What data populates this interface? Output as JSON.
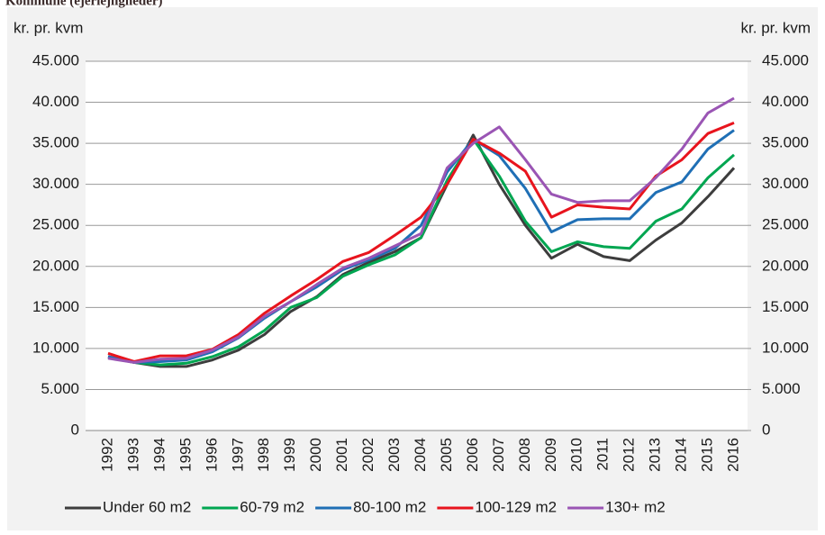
{
  "chart_data": {
    "type": "line",
    "title": "Kommune (ejerlejligheder)",
    "ylabel": "kr. pr. kvm",
    "y2label": "kr. pr. kvm",
    "x": [
      1992,
      1993,
      1994,
      1995,
      1996,
      1997,
      1998,
      1999,
      2000,
      2001,
      2002,
      2003,
      2004,
      2005,
      2006,
      2007,
      2008,
      2009,
      2010,
      2011,
      2012,
      2013,
      2014,
      2015,
      2016
    ],
    "ylim": [
      0,
      45000
    ],
    "yticks": [
      0,
      {
        "value": 5000,
        "label": "5.000"
      },
      {
        "value": 10000,
        "label": "10.000"
      },
      {
        "value": 15000,
        "label": "15.000"
      },
      {
        "value": 20000,
        "label": "20.000"
      },
      {
        "value": 25000,
        "label": "25.000"
      },
      {
        "value": 30000,
        "label": "30.000"
      },
      {
        "value": 35000,
        "label": "35.000"
      },
      {
        "value": 40000,
        "label": "40.000"
      },
      {
        "value": 45000,
        "label": "45.000"
      }
    ],
    "y2lim": [
      0,
      45000
    ],
    "y2ticks": [
      0,
      {
        "value": 5000,
        "label": "5.000"
      },
      {
        "value": 10000,
        "label": "10.000"
      },
      {
        "value": 15000,
        "label": "15.000"
      },
      {
        "value": 20000,
        "label": "20.000"
      },
      {
        "value": 25000,
        "label": "25.000"
      },
      {
        "value": 30000,
        "label": "30.000"
      },
      {
        "value": 35000,
        "label": "35.000"
      },
      {
        "value": 40000,
        "label": "40.000"
      },
      {
        "value": 45000,
        "label": "45.000"
      }
    ],
    "grid": true,
    "legend": "bottom",
    "series": [
      {
        "name": "Under 60 m2",
        "color": "#3d3d3d",
        "values": [
          9000,
          8300,
          7800,
          7800,
          8600,
          9800,
          11700,
          14500,
          16300,
          19000,
          20500,
          21800,
          23500,
          30000,
          36000,
          30000,
          25000,
          21000,
          22700,
          21200,
          20700,
          23200,
          25300,
          28500,
          32000
        ]
      },
      {
        "name": "60-79 m2",
        "color": "#00a651",
        "values": [
          8900,
          8300,
          8000,
          8200,
          9000,
          10200,
          12200,
          15000,
          16200,
          18800,
          20200,
          21400,
          23500,
          30500,
          35500,
          31000,
          25500,
          21800,
          23000,
          22400,
          22200,
          25500,
          27000,
          30800,
          33600
        ]
      },
      {
        "name": "80-100 m2",
        "color": "#1f6fb5",
        "values": [
          9000,
          8300,
          8400,
          8600,
          9600,
          11300,
          13700,
          15700,
          17500,
          19600,
          20800,
          22200,
          25000,
          31500,
          35500,
          33500,
          29500,
          24200,
          25700,
          25800,
          25800,
          29000,
          30300,
          34300,
          36600
        ]
      },
      {
        "name": "100-129 m2",
        "color": "#e8141d",
        "values": [
          9400,
          8400,
          9100,
          9100,
          9900,
          11700,
          14300,
          16400,
          18400,
          20600,
          21700,
          23800,
          26000,
          30000,
          35500,
          33800,
          31600,
          26000,
          27500,
          27200,
          27000,
          31000,
          33000,
          36200,
          37500
        ]
      },
      {
        "name": "130+ m2",
        "color": "#9a55b4",
        "values": [
          8800,
          8300,
          8700,
          8800,
          9800,
          11400,
          13900,
          15700,
          17800,
          19800,
          21000,
          22500,
          24000,
          32000,
          35000,
          37000,
          33000,
          28800,
          27800,
          28000,
          28000,
          30800,
          34300,
          38700,
          40500
        ]
      }
    ]
  }
}
